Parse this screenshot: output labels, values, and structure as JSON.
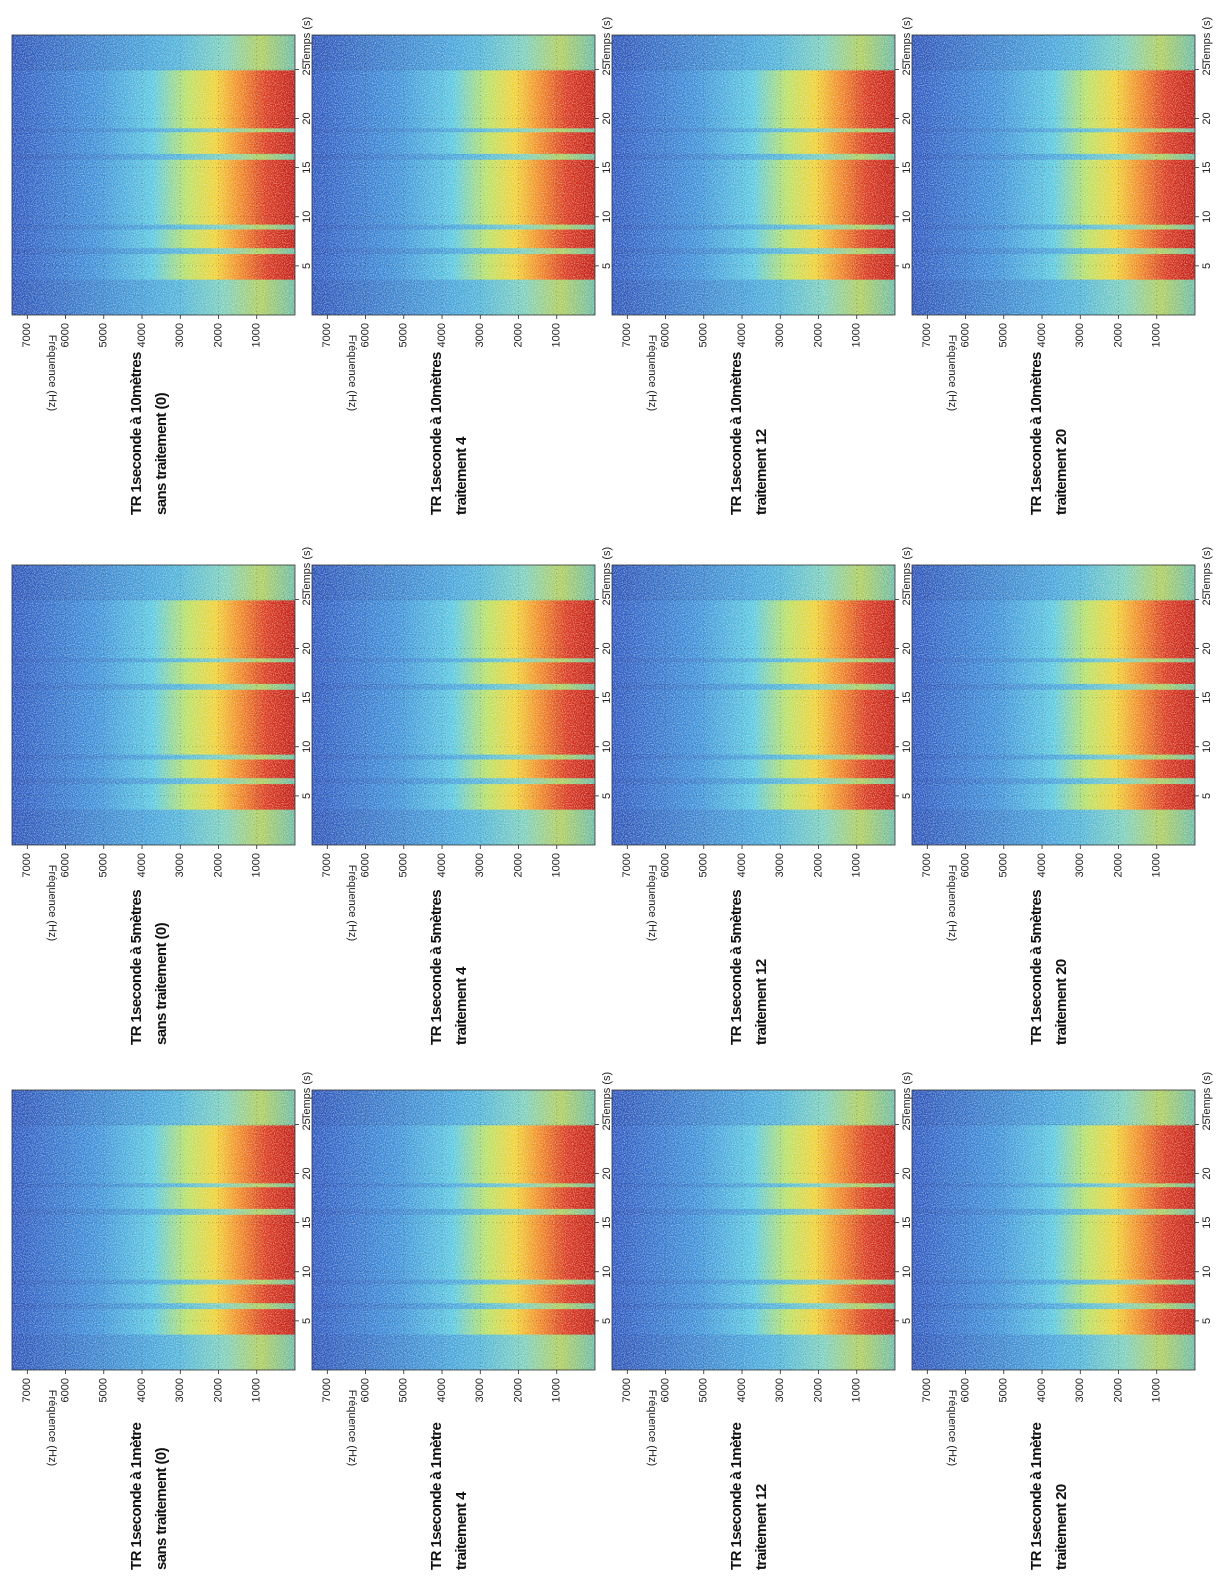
{
  "chart_data": [
    {
      "type": "spectrogram",
      "title": "TR 1seconde à 1mètre",
      "subtitle": "sans traitement (0)",
      "xlabel": "Temps (s)",
      "ylabel": "Fréquence (Hz)",
      "xlim": [
        0,
        28.5
      ],
      "xticks": [
        5,
        10,
        15,
        20,
        25
      ],
      "ylim": [
        0,
        7400
      ],
      "yticks": [
        1000,
        2000,
        3000,
        4000,
        5000,
        6000,
        7000
      ],
      "grid": true
    },
    {
      "type": "spectrogram",
      "title": "TR 1seconde à 1mètre",
      "subtitle": "traitement 4",
      "xlabel": "Temps (s)",
      "ylabel": "Fréquence (Hz)",
      "xlim": [
        0,
        28.5
      ],
      "xticks": [
        5,
        10,
        15,
        20,
        25
      ],
      "ylim": [
        0,
        7400
      ],
      "yticks": [
        1000,
        2000,
        3000,
        4000,
        5000,
        6000,
        7000
      ],
      "grid": true
    },
    {
      "type": "spectrogram",
      "title": "TR 1seconde à 1mètre",
      "subtitle": "traitement 12",
      "xlabel": "Temps (s)",
      "ylabel": "Fréquence (Hz)",
      "xlim": [
        0,
        28.5
      ],
      "xticks": [
        5,
        10,
        15,
        20,
        25
      ],
      "ylim": [
        0,
        7400
      ],
      "yticks": [
        1000,
        2000,
        3000,
        4000,
        5000,
        6000,
        7000
      ],
      "grid": true
    },
    {
      "type": "spectrogram",
      "title": "TR 1seconde à 1mètre",
      "subtitle": "traitement 20",
      "xlabel": "Temps (s)",
      "ylabel": "Fréquence (Hz)",
      "xlim": [
        0,
        28.5
      ],
      "xticks": [
        5,
        10,
        15,
        20,
        25
      ],
      "ylim": [
        0,
        7400
      ],
      "yticks": [
        1000,
        2000,
        3000,
        4000,
        5000,
        6000,
        7000
      ],
      "grid": true
    },
    {
      "type": "spectrogram",
      "title": "TR 1seconde à 5mètres",
      "subtitle": "sans traitement (0)",
      "xlabel": "Temps (s)",
      "ylabel": "Fréquence (Hz)",
      "xlim": [
        0,
        28.5
      ],
      "xticks": [
        5,
        10,
        15,
        20,
        25
      ],
      "ylim": [
        0,
        7400
      ],
      "yticks": [
        1000,
        2000,
        3000,
        4000,
        5000,
        6000,
        7000
      ],
      "grid": true
    },
    {
      "type": "spectrogram",
      "title": "TR 1seconde à 5mètres",
      "subtitle": "traitement 4",
      "xlabel": "Temps (s)",
      "ylabel": "Fréquence (Hz)",
      "xlim": [
        0,
        28.5
      ],
      "xticks": [
        5,
        10,
        15,
        20,
        25
      ],
      "ylim": [
        0,
        7400
      ],
      "yticks": [
        1000,
        2000,
        3000,
        4000,
        5000,
        6000,
        7000
      ],
      "grid": true
    },
    {
      "type": "spectrogram",
      "title": "TR 1seconde à 5mètres",
      "subtitle": "traitement 12",
      "xlabel": "Temps (s)",
      "ylabel": "Fréquence (Hz)",
      "xlim": [
        0,
        28.5
      ],
      "xticks": [
        5,
        10,
        15,
        20,
        25
      ],
      "ylim": [
        0,
        7400
      ],
      "yticks": [
        1000,
        2000,
        3000,
        4000,
        5000,
        6000,
        7000
      ],
      "grid": true
    },
    {
      "type": "spectrogram",
      "title": "TR 1seconde à 5mètres",
      "subtitle": "traitement 20",
      "xlabel": "Temps (s)",
      "ylabel": "Fréquence (Hz)",
      "xlim": [
        0,
        28.5
      ],
      "xticks": [
        5,
        10,
        15,
        20,
        25
      ],
      "ylim": [
        0,
        7400
      ],
      "yticks": [
        1000,
        2000,
        3000,
        4000,
        5000,
        6000,
        7000
      ],
      "grid": true
    },
    {
      "type": "spectrogram",
      "title": "TR 1seconde à 10mètres",
      "subtitle": "sans traitement (0)",
      "xlabel": "Temps (s)",
      "ylabel": "Fréquence (Hz)",
      "xlim": [
        0,
        28.5
      ],
      "xticks": [
        5,
        10,
        15,
        20,
        25
      ],
      "ylim": [
        0,
        7400
      ],
      "yticks": [
        1000,
        2000,
        3000,
        4000,
        5000,
        6000,
        7000
      ],
      "grid": true
    },
    {
      "type": "spectrogram",
      "title": "TR 1seconde à 10mètres",
      "subtitle": "traitement 4",
      "xlabel": "Temps (s)",
      "ylabel": "Fréquence (Hz)",
      "xlim": [
        0,
        28.5
      ],
      "xticks": [
        5,
        10,
        15,
        20,
        25
      ],
      "ylim": [
        0,
        7400
      ],
      "yticks": [
        1000,
        2000,
        3000,
        4000,
        5000,
        6000,
        7000
      ],
      "grid": true
    },
    {
      "type": "spectrogram",
      "title": "TR 1seconde à 10mètres",
      "subtitle": "traitement 12",
      "xlabel": "Temps (s)",
      "ylabel": "Fréquence (Hz)",
      "xlim": [
        0,
        28.5
      ],
      "xticks": [
        5,
        10,
        15,
        20,
        25
      ],
      "ylim": [
        0,
        7400
      ],
      "yticks": [
        1000,
        2000,
        3000,
        4000,
        5000,
        6000,
        7000
      ],
      "grid": true
    },
    {
      "type": "spectrogram",
      "title": "TR 1seconde à 10mètres",
      "subtitle": "traitement 20",
      "xlabel": "Temps (s)",
      "ylabel": "Fréquence (Hz)",
      "xlim": [
        0,
        28.5
      ],
      "xticks": [
        5,
        10,
        15,
        20,
        25
      ],
      "ylim": [
        0,
        7400
      ],
      "yticks": [
        1000,
        2000,
        3000,
        4000,
        5000,
        6000,
        7000
      ],
      "grid": true
    }
  ]
}
